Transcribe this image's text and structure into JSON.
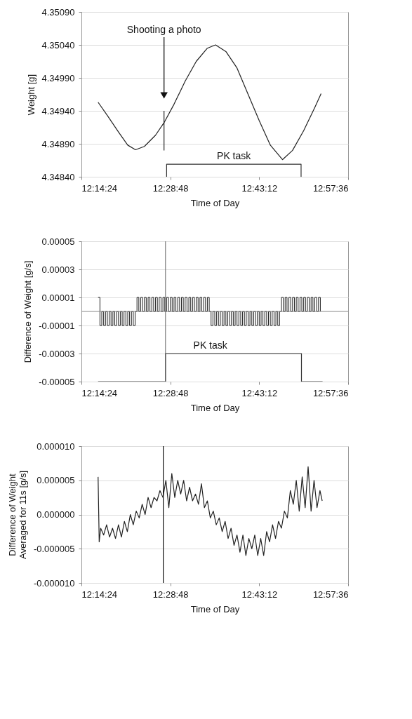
{
  "chart_data": [
    {
      "type": "line",
      "xlabel": "Time of Day",
      "ylabel": "Weight [g]",
      "xlim": [
        12.24,
        12.96
      ],
      "xticks": [
        {
          "value": 12.24,
          "label": "12:14:24"
        },
        {
          "value": 12.48,
          "label": "12:28:48"
        },
        {
          "value": 12.72,
          "label": "12:43:12"
        },
        {
          "value": 12.96,
          "label": "12:57:36"
        }
      ],
      "ylim": [
        4.3484,
        4.3509
      ],
      "yticks": [
        {
          "value": 4.3484,
          "label": "4.34840"
        },
        {
          "value": 4.3489,
          "label": "4.34890"
        },
        {
          "value": 4.3494,
          "label": "4.34940"
        },
        {
          "value": 4.3499,
          "label": "4.34990"
        },
        {
          "value": 4.3504,
          "label": "4.35040"
        },
        {
          "value": 4.3509,
          "label": "4.35090"
        }
      ],
      "grid": "y",
      "series": [
        {
          "color": "#222222",
          "x": [
            12.285,
            12.31,
            12.34,
            12.365,
            12.386,
            12.41,
            12.44,
            12.463,
            12.49,
            12.52,
            12.55,
            12.58,
            12.602,
            12.63,
            12.66,
            12.69,
            12.72,
            12.75,
            12.783,
            12.81,
            12.84,
            12.87,
            12.887
          ],
          "values": [
            4.34953,
            4.34933,
            4.34908,
            4.34888,
            4.34881,
            4.34886,
            4.34903,
            4.34922,
            4.3495,
            4.34985,
            4.35015,
            4.35035,
            4.3504,
            4.3503,
            4.35005,
            4.34965,
            4.34925,
            4.34888,
            4.34866,
            4.3488,
            4.3491,
            4.34945,
            4.34966
          ]
        },
        {
          "color": "#222222",
          "x": [
            12.463,
            12.463
          ],
          "values": [
            4.3488,
            4.3494
          ]
        },
        {
          "name": "PK task",
          "color": "#333333",
          "x": [
            12.47,
            12.47,
            12.833,
            12.833
          ],
          "values": [
            4.3484,
            4.34859,
            4.34859,
            4.3484
          ]
        }
      ],
      "annotations": [
        "Shooting a photo"
      ]
    },
    {
      "type": "step",
      "xlabel": "Time of Day",
      "ylabel": "Difference of Weight [g/s]",
      "xlim": [
        12.24,
        12.96
      ],
      "xticks": [
        {
          "value": 12.24,
          "label": "12:14:24"
        },
        {
          "value": 12.48,
          "label": "12:28:48"
        },
        {
          "value": 12.72,
          "label": "12:43:12"
        },
        {
          "value": 12.96,
          "label": "12:57:36"
        }
      ],
      "ylim": [
        -5e-05,
        5e-05
      ],
      "yticks": [
        {
          "value": -5e-05,
          "label": "-0.00005"
        },
        {
          "value": -3e-05,
          "label": "-0.00003"
        },
        {
          "value": -1e-05,
          "label": "-0.00001"
        },
        {
          "value": 1e-05,
          "label": "0.00001"
        },
        {
          "value": 3e-05,
          "label": "0.00003"
        },
        {
          "value": 5e-05,
          "label": "0.00005"
        }
      ],
      "grid": "y",
      "series": [
        {
          "color": "#222222",
          "x": [
            12.285,
            12.29,
            12.295,
            12.3,
            12.305,
            12.31,
            12.315,
            12.32,
            12.325,
            12.33,
            12.335,
            12.34,
            12.345,
            12.35,
            12.355,
            12.36,
            12.365,
            12.37,
            12.375,
            12.38,
            12.385,
            12.39,
            12.395,
            12.4,
            12.405,
            12.41,
            12.415,
            12.42,
            12.425,
            12.43,
            12.435,
            12.44,
            12.445,
            12.45,
            12.455,
            12.46,
            12.465,
            12.47,
            12.475,
            12.48,
            12.485,
            12.49,
            12.495,
            12.5,
            12.505,
            12.51,
            12.515,
            12.52,
            12.525,
            12.53,
            12.535,
            12.54,
            12.545,
            12.55,
            12.555,
            12.56,
            12.565,
            12.57,
            12.575,
            12.58,
            12.585,
            12.59,
            12.595,
            12.6,
            12.605,
            12.61,
            12.615,
            12.62,
            12.625,
            12.63,
            12.635,
            12.64,
            12.645,
            12.65,
            12.655,
            12.66,
            12.665,
            12.67,
            12.675,
            12.68,
            12.685,
            12.69,
            12.695,
            12.7,
            12.705,
            12.71,
            12.715,
            12.72,
            12.725,
            12.73,
            12.735,
            12.74,
            12.745,
            12.75,
            12.755,
            12.76,
            12.765,
            12.77,
            12.775,
            12.78,
            12.785,
            12.79,
            12.795,
            12.8,
            12.805,
            12.81,
            12.815,
            12.82,
            12.825,
            12.83,
            12.835,
            12.84,
            12.845,
            12.85,
            12.855,
            12.86,
            12.865,
            12.87,
            12.875,
            12.88,
            12.885
          ],
          "values": [
            1e-05,
            -1e-05,
            0,
            -1e-05,
            0,
            -1e-05,
            0,
            -1e-05,
            0,
            -1e-05,
            0,
            -1e-05,
            0,
            -1e-05,
            0,
            -1e-05,
            0,
            -1e-05,
            0,
            -1e-05,
            0,
            1e-05,
            0,
            1e-05,
            0,
            1e-05,
            0,
            1e-05,
            0,
            1e-05,
            0,
            1e-05,
            0,
            1e-05,
            0,
            1e-05,
            0,
            1e-05,
            0,
            1e-05,
            0,
            1e-05,
            0,
            1e-05,
            0,
            1e-05,
            0,
            1e-05,
            0,
            1e-05,
            0,
            1e-05,
            0,
            1e-05,
            0,
            1e-05,
            0,
            1e-05,
            0,
            1e-05,
            0,
            -1e-05,
            0,
            -1e-05,
            0,
            -1e-05,
            0,
            -1e-05,
            0,
            -1e-05,
            0,
            -1e-05,
            0,
            -1e-05,
            0,
            -1e-05,
            0,
            -1e-05,
            0,
            -1e-05,
            0,
            -1e-05,
            0,
            -1e-05,
            0,
            -1e-05,
            0,
            -1e-05,
            0,
            -1e-05,
            0,
            -1e-05,
            0,
            -1e-05,
            0,
            -1e-05,
            0,
            -1e-05,
            0,
            1e-05,
            0,
            1e-05,
            0,
            1e-05,
            0,
            1e-05,
            0,
            1e-05,
            0,
            1e-05,
            0,
            1e-05,
            0,
            1e-05,
            0,
            1e-05,
            0,
            1e-05,
            0,
            1e-05,
            0
          ]
        },
        {
          "name": "PK task",
          "type": "line",
          "color": "#333333",
          "x": [
            12.285,
            12.467,
            12.467,
            12.834,
            12.834,
            12.891
          ],
          "values": [
            -5e-05,
            -5e-05,
            -3e-05,
            -3e-05,
            -5e-05,
            -5e-05
          ]
        }
      ],
      "ref_lines": [
        {
          "axis": "x",
          "value": 12.467,
          "color": "#666666"
        },
        {
          "axis": "y",
          "value": 0,
          "color": "#888888"
        }
      ]
    },
    {
      "type": "line",
      "xlabel": "Time of Day",
      "ylabel": "Difference of Weight\nAveraged for 11s [g/s]",
      "xlim": [
        12.24,
        12.96
      ],
      "xticks": [
        {
          "value": 12.24,
          "label": "12:14:24"
        },
        {
          "value": 12.48,
          "label": "12:28:48"
        },
        {
          "value": 12.72,
          "label": "12:43:12"
        },
        {
          "value": 12.96,
          "label": "12:57:36"
        }
      ],
      "ylim": [
        -1e-05,
        1e-05
      ],
      "yticks": [
        {
          "value": -1e-05,
          "label": "-0.000010"
        },
        {
          "value": -5e-06,
          "label": "-0.000005"
        },
        {
          "value": 0,
          "label": "0.000000"
        },
        {
          "value": 5e-06,
          "label": "0.000005"
        },
        {
          "value": 1e-05,
          "label": "0.000010"
        }
      ],
      "grid": "y",
      "series": [
        {
          "color": "#222222",
          "x": [
            12.285,
            12.288,
            12.292,
            12.3,
            12.308,
            12.316,
            12.324,
            12.332,
            12.34,
            12.348,
            12.356,
            12.364,
            12.372,
            12.38,
            12.388,
            12.396,
            12.404,
            12.412,
            12.42,
            12.428,
            12.436,
            12.444,
            12.452,
            12.46,
            12.468,
            12.476,
            12.484,
            12.492,
            12.5,
            12.508,
            12.516,
            12.524,
            12.532,
            12.54,
            12.548,
            12.556,
            12.564,
            12.572,
            12.58,
            12.588,
            12.596,
            12.604,
            12.612,
            12.62,
            12.628,
            12.636,
            12.644,
            12.652,
            12.66,
            12.668,
            12.676,
            12.684,
            12.692,
            12.7,
            12.708,
            12.716,
            12.724,
            12.732,
            12.74,
            12.748,
            12.756,
            12.764,
            12.772,
            12.78,
            12.788,
            12.796,
            12.804,
            12.812,
            12.82,
            12.828,
            12.836,
            12.844,
            12.852,
            12.86,
            12.868,
            12.876,
            12.884,
            12.89
          ],
          "values": [
            5.5e-06,
            -4e-06,
            -2e-06,
            -3e-06,
            -1.5e-06,
            -3.3e-06,
            -2e-06,
            -3.5e-06,
            -1.5e-06,
            -3.3e-06,
            -1e-06,
            -2.5e-06,
            0,
            -1.5e-06,
            5e-07,
            -5e-07,
            1.5e-06,
            0,
            2.5e-06,
            1e-06,
            2.5e-06,
            2e-06,
            3.5e-06,
            2.5e-06,
            5e-06,
            1e-06,
            6e-06,
            2.5e-06,
            5e-06,
            3e-06,
            5e-06,
            2e-06,
            4e-06,
            2e-06,
            3e-06,
            1.5e-06,
            4.5e-06,
            1e-06,
            2e-06,
            -5e-07,
            5e-07,
            -1.5e-06,
            -5e-07,
            -2.5e-06,
            -1e-06,
            -3.5e-06,
            -2e-06,
            -4.5e-06,
            -3e-06,
            -5.5e-06,
            -3e-06,
            -6e-06,
            -3.5e-06,
            -5e-06,
            -3e-06,
            -6e-06,
            -3.5e-06,
            -6e-06,
            -2.5e-06,
            -4e-06,
            -1.5e-06,
            -3.5e-06,
            -1e-06,
            -2e-06,
            5e-07,
            -5e-07,
            3.5e-06,
            1.5e-06,
            5e-06,
            5e-07,
            5.5e-06,
            1e-06,
            7e-06,
            5e-07,
            5e-06,
            1e-06,
            3.5e-06,
            2e-06
          ]
        },
        {
          "color": "#111111",
          "x": [
            12.461,
            12.461
          ],
          "values": [
            -1e-05,
            1e-05
          ]
        }
      ]
    }
  ]
}
